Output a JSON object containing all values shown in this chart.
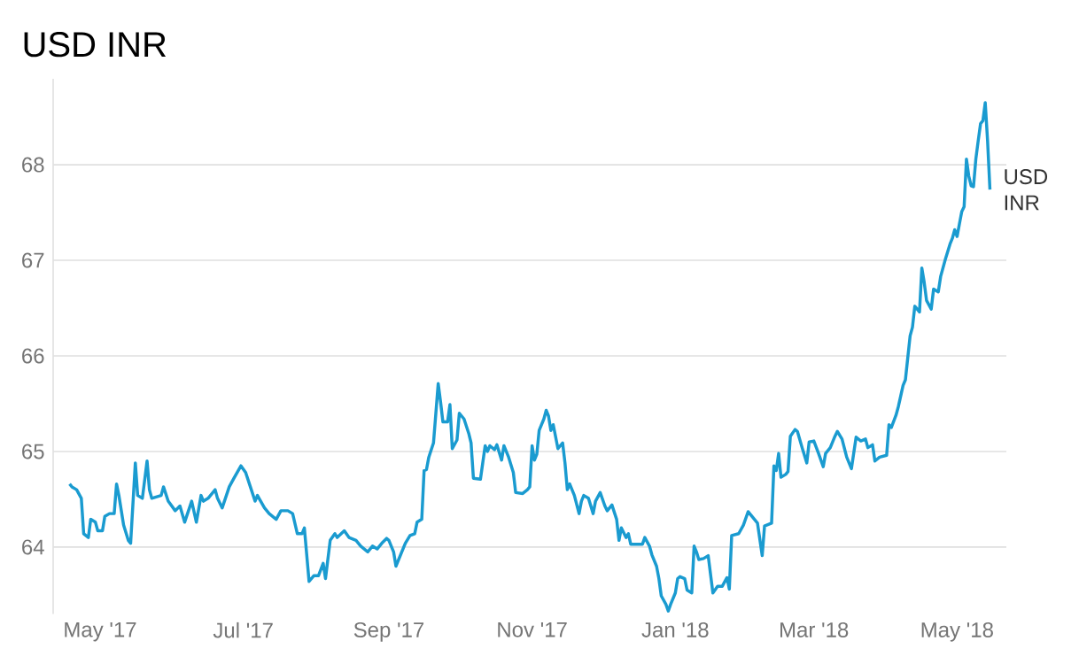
{
  "chart_data": {
    "type": "line",
    "title": "USD INR",
    "x": [
      "2017-04-18",
      "2017-04-19",
      "2017-04-21",
      "2017-04-23",
      "2017-04-24",
      "2017-04-26",
      "2017-04-27",
      "2017-04-29",
      "2017-04-30",
      "2017-05-02",
      "2017-05-03",
      "2017-05-05",
      "2017-05-07",
      "2017-05-08",
      "2017-05-09",
      "2017-05-11",
      "2017-05-13",
      "2017-05-14",
      "2017-05-16",
      "2017-05-17",
      "2017-05-19",
      "2017-05-21",
      "2017-05-22",
      "2017-05-23",
      "2017-05-27",
      "2017-05-28",
      "2017-05-30",
      "2017-06-02",
      "2017-06-04",
      "2017-06-06",
      "2017-06-09",
      "2017-06-11",
      "2017-06-13",
      "2017-06-14",
      "2017-06-16",
      "2017-06-19",
      "2017-06-20",
      "2017-06-22",
      "2017-06-25",
      "2017-06-27",
      "2017-06-30",
      "2017-07-02",
      "2017-07-04",
      "2017-07-06",
      "2017-07-07",
      "2017-07-10",
      "2017-07-12",
      "2017-07-15",
      "2017-07-17",
      "2017-07-20",
      "2017-07-22",
      "2017-07-24",
      "2017-07-26",
      "2017-07-27",
      "2017-07-29",
      "2017-07-31",
      "2017-08-02",
      "2017-08-04",
      "2017-08-05",
      "2017-08-07",
      "2017-08-09",
      "2017-08-10",
      "2017-08-13",
      "2017-08-15",
      "2017-08-18",
      "2017-08-20",
      "2017-08-23",
      "2017-08-25",
      "2017-08-27",
      "2017-08-29",
      "2017-08-31",
      "2017-09-01",
      "2017-09-03",
      "2017-09-04",
      "2017-09-06",
      "2017-09-08",
      "2017-09-10",
      "2017-09-12",
      "2017-09-13",
      "2017-09-15",
      "2017-09-16",
      "2017-09-17",
      "2017-09-18",
      "2017-09-20",
      "2017-09-21",
      "2017-09-22",
      "2017-09-23",
      "2017-09-24",
      "2017-09-26",
      "2017-09-27",
      "2017-09-28",
      "2017-09-30",
      "2017-10-01",
      "2017-10-02",
      "2017-10-03",
      "2017-10-05",
      "2017-10-06",
      "2017-10-07",
      "2017-10-10",
      "2017-10-12",
      "2017-10-13",
      "2017-10-14",
      "2017-10-16",
      "2017-10-17",
      "2017-10-19",
      "2017-10-20",
      "2017-10-22",
      "2017-10-24",
      "2017-10-25",
      "2017-10-28",
      "2017-10-30",
      "2017-10-31",
      "2017-11-01",
      "2017-11-02",
      "2017-11-03",
      "2017-11-04",
      "2017-11-06",
      "2017-11-07",
      "2017-11-08",
      "2017-11-09",
      "2017-11-10",
      "2017-11-12",
      "2017-11-13",
      "2017-11-14",
      "2017-11-15",
      "2017-11-16",
      "2017-11-17",
      "2017-11-19",
      "2017-11-21",
      "2017-11-22",
      "2017-11-23",
      "2017-11-25",
      "2017-11-27",
      "2017-11-28",
      "2017-11-30",
      "2017-12-02",
      "2017-12-03",
      "2017-12-05",
      "2017-12-07",
      "2017-12-08",
      "2017-12-09",
      "2017-12-11",
      "2017-12-12",
      "2017-12-13",
      "2017-12-16",
      "2017-12-18",
      "2017-12-19",
      "2017-12-21",
      "2017-12-22",
      "2017-12-24",
      "2017-12-25",
      "2017-12-26",
      "2017-12-28",
      "2017-12-29",
      "2017-12-30",
      "2018-01-01",
      "2018-01-02",
      "2018-01-03",
      "2018-01-05",
      "2018-01-06",
      "2018-01-08",
      "2018-01-09",
      "2018-01-10",
      "2018-01-11",
      "2018-01-13",
      "2018-01-15",
      "2018-01-17",
      "2018-01-19",
      "2018-01-21",
      "2018-01-23",
      "2018-01-24",
      "2018-01-25",
      "2018-01-28",
      "2018-01-30",
      "2018-02-01",
      "2018-02-03",
      "2018-02-05",
      "2018-02-07",
      "2018-02-08",
      "2018-02-11",
      "2018-02-12",
      "2018-02-13",
      "2018-02-14",
      "2018-02-15",
      "2018-02-17",
      "2018-02-18",
      "2018-02-19",
      "2018-02-21",
      "2018-02-22",
      "2018-02-24",
      "2018-02-26",
      "2018-02-27",
      "2018-03-01",
      "2018-03-03",
      "2018-03-05",
      "2018-03-06",
      "2018-03-08",
      "2018-03-10",
      "2018-03-11",
      "2018-03-13",
      "2018-03-15",
      "2018-03-17",
      "2018-03-19",
      "2018-03-21",
      "2018-03-23",
      "2018-03-24",
      "2018-03-26",
      "2018-03-27",
      "2018-03-29",
      "2018-04-01",
      "2018-04-02",
      "2018-04-03",
      "2018-04-05",
      "2018-04-06",
      "2018-04-08",
      "2018-04-09",
      "2018-04-11",
      "2018-04-12",
      "2018-04-13",
      "2018-04-15",
      "2018-04-16",
      "2018-04-17",
      "2018-04-18",
      "2018-04-20",
      "2018-04-21",
      "2018-04-23",
      "2018-04-24",
      "2018-04-26",
      "2018-04-28",
      "2018-04-29",
      "2018-04-30",
      "2018-05-01",
      "2018-05-02",
      "2018-05-03",
      "2018-05-04",
      "2018-05-05",
      "2018-05-06",
      "2018-05-07",
      "2018-05-08",
      "2018-05-09",
      "2018-05-10",
      "2018-05-11",
      "2018-05-12",
      "2018-05-13",
      "2018-05-14",
      "2018-05-15"
    ],
    "series": [
      {
        "name": "USD INR",
        "color": "#1a9bd0",
        "values": [
          64.66,
          64.63,
          64.6,
          64.51,
          64.14,
          64.1,
          64.29,
          64.26,
          64.17,
          64.17,
          64.32,
          64.35,
          64.35,
          64.66,
          64.54,
          64.23,
          64.07,
          64.04,
          64.88,
          64.54,
          64.51,
          64.9,
          64.6,
          64.51,
          64.54,
          64.63,
          64.48,
          64.38,
          64.43,
          64.26,
          64.48,
          64.26,
          64.54,
          64.48,
          64.51,
          64.6,
          64.51,
          64.41,
          64.63,
          64.72,
          64.85,
          64.78,
          64.63,
          64.48,
          64.54,
          64.41,
          64.35,
          64.29,
          64.38,
          64.38,
          64.35,
          64.14,
          64.14,
          64.2,
          63.64,
          63.7,
          63.7,
          63.83,
          63.67,
          64.07,
          64.14,
          64.1,
          64.17,
          64.1,
          64.07,
          64.01,
          63.95,
          64.01,
          63.98,
          64.04,
          64.09,
          64.07,
          63.95,
          63.8,
          63.92,
          64.04,
          64.12,
          64.14,
          64.26,
          64.29,
          64.8,
          64.81,
          64.94,
          65.09,
          65.4,
          65.71,
          65.52,
          65.31,
          65.31,
          65.49,
          65.03,
          65.12,
          65.4,
          65.37,
          65.34,
          65.19,
          65.09,
          64.72,
          64.71,
          65.06,
          65.0,
          65.06,
          65.02,
          65.07,
          64.91,
          65.06,
          64.94,
          64.78,
          64.57,
          64.56,
          64.6,
          64.63,
          65.06,
          64.91,
          64.97,
          65.22,
          65.34,
          65.43,
          65.37,
          65.22,
          65.28,
          65.03,
          65.06,
          65.09,
          64.88,
          64.6,
          64.66,
          64.54,
          64.35,
          64.48,
          64.54,
          64.51,
          64.35,
          64.48,
          64.57,
          64.43,
          64.38,
          64.44,
          64.29,
          64.07,
          64.2,
          64.1,
          64.14,
          64.03,
          64.03,
          64.03,
          64.1,
          64.01,
          63.92,
          63.8,
          63.67,
          63.49,
          63.4,
          63.33,
          63.4,
          63.52,
          63.67,
          63.69,
          63.67,
          63.55,
          63.52,
          64.01,
          63.95,
          63.87,
          63.88,
          63.91,
          63.52,
          63.59,
          63.59,
          63.68,
          63.56,
          64.12,
          64.14,
          64.23,
          64.37,
          64.31,
          64.25,
          63.91,
          64.22,
          64.25,
          64.85,
          64.8,
          64.98,
          64.73,
          64.76,
          64.79,
          65.16,
          65.23,
          65.21,
          65.04,
          64.88,
          65.1,
          65.11,
          64.98,
          64.84,
          64.98,
          65.04,
          65.16,
          65.21,
          65.13,
          64.94,
          64.82,
          65.15,
          65.11,
          65.13,
          65.04,
          65.07,
          64.9,
          64.94,
          64.96,
          65.28,
          65.25,
          65.38,
          65.47,
          65.69,
          65.75,
          66.21,
          66.3,
          66.52,
          66.46,
          66.92,
          66.77,
          66.58,
          66.49,
          66.7,
          66.67,
          66.83,
          67.01,
          67.17,
          67.23,
          67.32,
          67.25,
          67.38,
          67.51,
          67.56,
          68.06,
          67.88,
          67.78,
          67.77,
          68.06,
          68.25,
          68.43,
          68.46,
          68.65,
          68.25,
          67.74
        ]
      }
    ],
    "xlim": [
      "2017-04-11",
      "2018-05-22"
    ],
    "ylim": [
      63.3,
      68.9
    ],
    "xticks": [
      {
        "value": "2017-05-01",
        "label": "May '17"
      },
      {
        "value": "2017-07-01",
        "label": "Jul '17"
      },
      {
        "value": "2017-09-01",
        "label": "Sep '17"
      },
      {
        "value": "2017-11-01",
        "label": "Nov '17"
      },
      {
        "value": "2018-01-01",
        "label": "Jan '18"
      },
      {
        "value": "2018-03-01",
        "label": "Mar '18"
      },
      {
        "value": "2018-05-01",
        "label": "May '18"
      }
    ],
    "yticks": [
      64,
      65,
      66,
      67,
      68
    ],
    "grid": "y",
    "marker": "none"
  }
}
